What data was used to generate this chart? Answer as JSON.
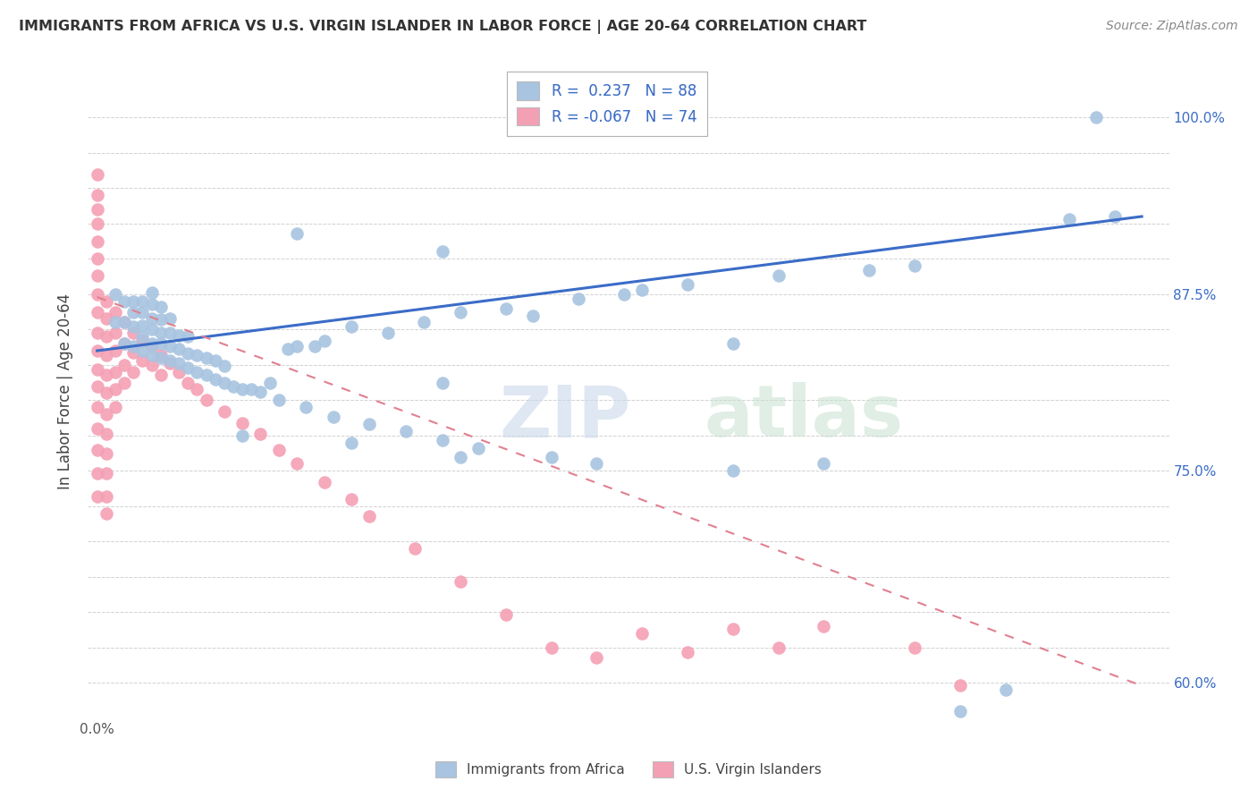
{
  "title": "IMMIGRANTS FROM AFRICA VS U.S. VIRGIN ISLANDER IN LABOR FORCE | AGE 20-64 CORRELATION CHART",
  "source": "Source: ZipAtlas.com",
  "ylabel": "In Labor Force | Age 20-64",
  "legend_label1": "Immigrants from Africa",
  "legend_label2": "U.S. Virgin Islanders",
  "R1": 0.237,
  "N1": 88,
  "R2": -0.067,
  "N2": 74,
  "color1": "#a8c4e0",
  "color2": "#f4a0b4",
  "line_color1": "#3b6cc7",
  "line_color2": "#e08090",
  "blue_trend_x": [
    0.0,
    0.115
  ],
  "blue_trend_y": [
    0.835,
    0.93
  ],
  "pink_trend_x": [
    0.0,
    0.115
  ],
  "pink_trend_y": [
    0.873,
    0.598
  ],
  "xlim_min": -0.001,
  "xlim_max": 0.118,
  "ylim_min": 0.575,
  "ylim_max": 1.038,
  "ytick_vals": [
    0.6,
    0.625,
    0.65,
    0.675,
    0.7,
    0.725,
    0.75,
    0.775,
    0.8,
    0.825,
    0.85,
    0.875,
    0.9,
    0.925,
    0.95,
    0.975,
    1.0
  ],
  "ytick_labels": [
    "60.0%",
    "",
    "",
    "",
    "",
    "",
    "75.0%",
    "",
    "",
    "",
    "",
    "87.5%",
    "",
    "",
    "",
    "",
    "100.0%"
  ],
  "xtick_vals": [
    0.0,
    0.01,
    0.02,
    0.03,
    0.04,
    0.05,
    0.06,
    0.07,
    0.08,
    0.09,
    0.1,
    0.11
  ],
  "blue_x": [
    0.002,
    0.002,
    0.003,
    0.003,
    0.003,
    0.004,
    0.004,
    0.004,
    0.004,
    0.005,
    0.005,
    0.005,
    0.005,
    0.005,
    0.006,
    0.006,
    0.006,
    0.006,
    0.006,
    0.006,
    0.007,
    0.007,
    0.007,
    0.007,
    0.007,
    0.008,
    0.008,
    0.008,
    0.008,
    0.009,
    0.009,
    0.009,
    0.01,
    0.01,
    0.01,
    0.011,
    0.011,
    0.012,
    0.012,
    0.013,
    0.013,
    0.014,
    0.014,
    0.015,
    0.016,
    0.017,
    0.018,
    0.019,
    0.02,
    0.021,
    0.022,
    0.023,
    0.024,
    0.025,
    0.026,
    0.028,
    0.03,
    0.032,
    0.034,
    0.036,
    0.038,
    0.04,
    0.042,
    0.045,
    0.048,
    0.05,
    0.053,
    0.055,
    0.058,
    0.06,
    0.065,
    0.07,
    0.075,
    0.08,
    0.085,
    0.09,
    0.095,
    0.1,
    0.107,
    0.11,
    0.038,
    0.028,
    0.04,
    0.022,
    0.016,
    0.07,
    0.112,
    0.038
  ],
  "blue_y": [
    0.855,
    0.875,
    0.84,
    0.855,
    0.87,
    0.838,
    0.852,
    0.862,
    0.87,
    0.835,
    0.845,
    0.853,
    0.862,
    0.87,
    0.832,
    0.84,
    0.85,
    0.858,
    0.868,
    0.876,
    0.83,
    0.84,
    0.848,
    0.857,
    0.866,
    0.828,
    0.838,
    0.848,
    0.858,
    0.826,
    0.836,
    0.846,
    0.823,
    0.833,
    0.845,
    0.82,
    0.832,
    0.818,
    0.83,
    0.815,
    0.828,
    0.812,
    0.824,
    0.81,
    0.808,
    0.808,
    0.806,
    0.812,
    0.8,
    0.836,
    0.838,
    0.795,
    0.838,
    0.842,
    0.788,
    0.852,
    0.783,
    0.848,
    0.778,
    0.855,
    0.772,
    0.862,
    0.766,
    0.865,
    0.86,
    0.76,
    0.872,
    0.755,
    0.875,
    0.878,
    0.882,
    0.75,
    0.888,
    0.755,
    0.892,
    0.895,
    0.58,
    0.595,
    0.928,
    1.0,
    0.905,
    0.77,
    0.76,
    0.918,
    0.775,
    0.84,
    0.93,
    0.812
  ],
  "pink_x": [
    0.0,
    0.0,
    0.0,
    0.0,
    0.0,
    0.0,
    0.0,
    0.0,
    0.0,
    0.0,
    0.0,
    0.0,
    0.0,
    0.0,
    0.0,
    0.0,
    0.0,
    0.0,
    0.001,
    0.001,
    0.001,
    0.001,
    0.001,
    0.001,
    0.001,
    0.001,
    0.001,
    0.001,
    0.001,
    0.001,
    0.002,
    0.002,
    0.002,
    0.002,
    0.002,
    0.002,
    0.003,
    0.003,
    0.003,
    0.003,
    0.004,
    0.004,
    0.004,
    0.005,
    0.005,
    0.006,
    0.006,
    0.007,
    0.007,
    0.008,
    0.009,
    0.01,
    0.011,
    0.012,
    0.014,
    0.016,
    0.018,
    0.02,
    0.022,
    0.025,
    0.028,
    0.03,
    0.035,
    0.04,
    0.045,
    0.05,
    0.055,
    0.06,
    0.065,
    0.07,
    0.075,
    0.08,
    0.09,
    0.095
  ],
  "pink_y": [
    0.96,
    0.945,
    0.935,
    0.925,
    0.912,
    0.9,
    0.888,
    0.875,
    0.862,
    0.848,
    0.835,
    0.822,
    0.81,
    0.795,
    0.78,
    0.765,
    0.748,
    0.732,
    0.87,
    0.858,
    0.845,
    0.832,
    0.818,
    0.805,
    0.79,
    0.776,
    0.762,
    0.748,
    0.732,
    0.72,
    0.862,
    0.848,
    0.835,
    0.82,
    0.808,
    0.795,
    0.855,
    0.84,
    0.825,
    0.812,
    0.848,
    0.834,
    0.82,
    0.842,
    0.828,
    0.838,
    0.825,
    0.832,
    0.818,
    0.826,
    0.82,
    0.812,
    0.808,
    0.8,
    0.792,
    0.784,
    0.776,
    0.765,
    0.755,
    0.742,
    0.73,
    0.718,
    0.695,
    0.672,
    0.648,
    0.625,
    0.618,
    0.635,
    0.622,
    0.638,
    0.625,
    0.64,
    0.625,
    0.598
  ]
}
